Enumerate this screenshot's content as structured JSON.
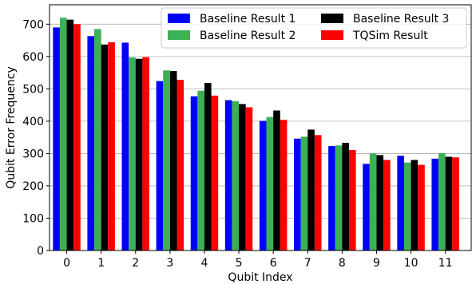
{
  "chart_data": {
    "type": "bar",
    "title": "",
    "xlabel": "Qubit Index",
    "ylabel": "Qubit Error Frequency",
    "categories": [
      "0",
      "1",
      "2",
      "3",
      "4",
      "5",
      "6",
      "7",
      "8",
      "9",
      "10",
      "11"
    ],
    "ylim": [
      0,
      760
    ],
    "yticks": [
      0,
      100,
      200,
      300,
      400,
      500,
      600,
      700
    ],
    "grid": "horizontal",
    "legend_placement": "top-right",
    "series": [
      {
        "name": "Baseline Result 1",
        "color": "#0000ff",
        "values": [
          690,
          663,
          643,
          524,
          477,
          465,
          401,
          346,
          323,
          268,
          293,
          284
        ]
      },
      {
        "name": "Baseline Result 2",
        "color": "#3cb054",
        "values": [
          720,
          685,
          597,
          557,
          494,
          462,
          413,
          352,
          325,
          300,
          272,
          301
        ]
      },
      {
        "name": "Baseline Result 3",
        "color": "#000000",
        "values": [
          714,
          637,
          593,
          555,
          518,
          453,
          433,
          374,
          333,
          295,
          280,
          290
        ]
      },
      {
        "name": "TQSim Result",
        "color": "#ff0000",
        "values": [
          700,
          644,
          598,
          528,
          479,
          443,
          404,
          357,
          311,
          280,
          265,
          288
        ]
      }
    ]
  }
}
